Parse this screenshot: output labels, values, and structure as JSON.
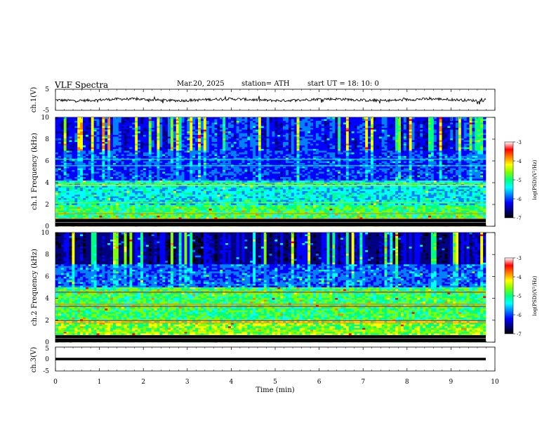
{
  "header": {
    "title": "VLF  Spectra",
    "date": "Mar.20, 2025",
    "station": "station= ATH",
    "start_ut": "start  UT  =    18: 10: 0"
  },
  "colors": {
    "trace": "#000000",
    "background": "#ffffff",
    "colormap": [
      "#000000",
      "#000080",
      "#0000ff",
      "#0080ff",
      "#00ffff",
      "#00ff80",
      "#80ff00",
      "#ffff00",
      "#ff8000",
      "#ff0000",
      "#ffffff"
    ]
  },
  "chart_data": [
    {
      "type": "line",
      "panel": "ch1-waveform",
      "ylabel": "ch.1(V)",
      "ylim": [
        -5,
        5
      ],
      "y_ticks": [
        "5",
        "-5"
      ],
      "xlim": [
        0,
        10
      ],
      "description_series": [
        {
          "values_level": 0
        }
      ]
    },
    {
      "type": "heatmap",
      "panel": "ch1-spectrogram",
      "ylabel": "ch.1 Frequency  (kHz)",
      "ylim": [
        0,
        10
      ],
      "y_ticks": [
        "0",
        "2",
        "4",
        "6",
        "8",
        "10"
      ],
      "xlim": [
        0,
        10
      ],
      "colorbar": {
        "label": "log(PSD)(V²/Hz)",
        "range": [
          -7,
          -3
        ],
        "ticks": [
          "-3",
          "-4",
          "-5",
          "-6",
          "-7"
        ]
      }
    },
    {
      "type": "heatmap",
      "panel": "ch2-spectrogram",
      "ylabel": "ch.2 Frequency  (kHz)",
      "ylim": [
        0,
        10
      ],
      "y_ticks": [
        "0",
        "2",
        "4",
        "6",
        "8",
        "10"
      ],
      "xlim": [
        0,
        10
      ],
      "colorbar": {
        "label": "log(PSD)(V²/Hz)",
        "range": [
          -7,
          -3
        ],
        "ticks": [
          "-3",
          "-4",
          "-5",
          "-6",
          "-7"
        ]
      }
    },
    {
      "type": "line",
      "panel": "ch3-waveform",
      "ylabel": "ch.3(V)",
      "ylim": [
        -5,
        5
      ],
      "y_ticks": [
        "5",
        "0",
        "-5"
      ],
      "xlim": [
        0,
        10
      ],
      "xlabel": "Time  (min)",
      "x_ticks": [
        "0",
        "1",
        "2",
        "3",
        "4",
        "5",
        "6",
        "7",
        "8",
        "9",
        "10"
      ]
    }
  ]
}
